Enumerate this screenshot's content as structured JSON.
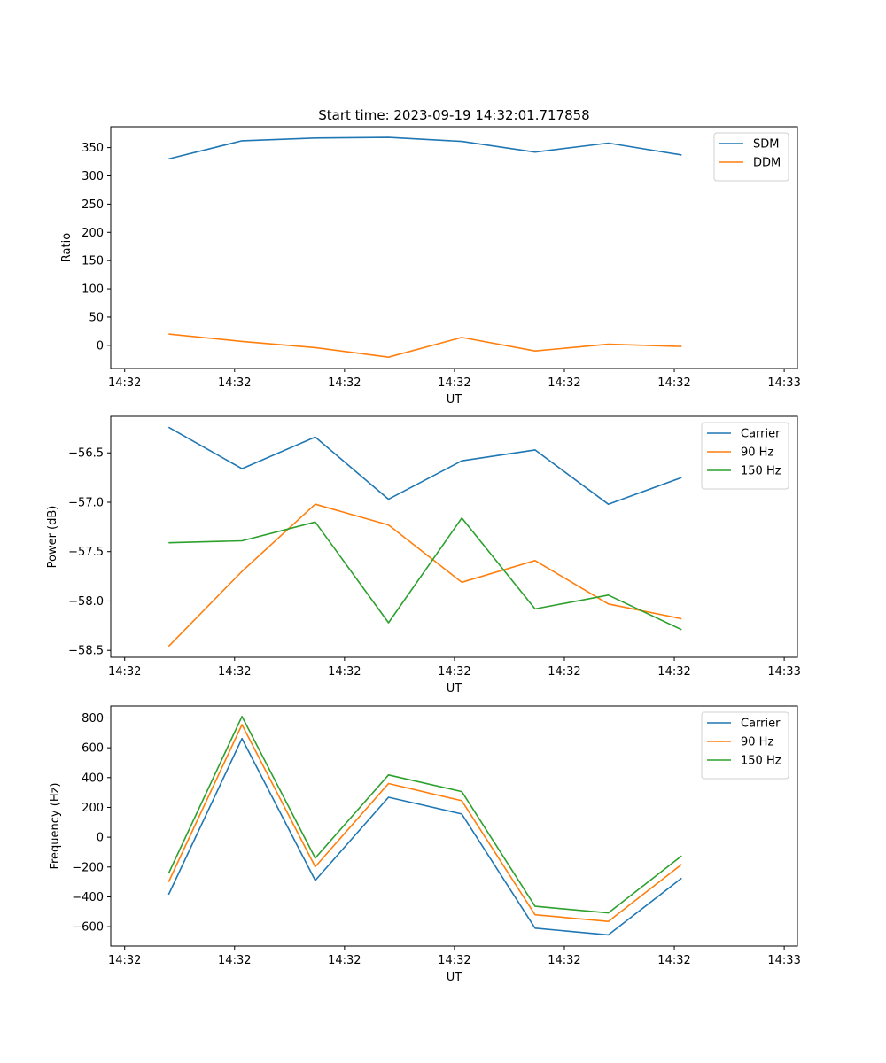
{
  "chart_data": [
    {
      "type": "line",
      "title": "Start time: 2023-09-19 14:32:01.717858",
      "xlabel": "UT",
      "ylabel": "Ratio",
      "x": [
        1,
        2,
        3,
        4,
        5,
        6,
        7,
        8
      ],
      "xlim": [
        0.21,
        9.58
      ],
      "x_ticks": [
        {
          "v": 0.4,
          "label": "14:32"
        },
        {
          "v": 1.9,
          "label": "14:32"
        },
        {
          "v": 3.4,
          "label": "14:32"
        },
        {
          "v": 4.9,
          "label": "14:32"
        },
        {
          "v": 6.4,
          "label": "14:32"
        },
        {
          "v": 7.9,
          "label": "14:32"
        },
        {
          "v": 9.4,
          "label": "14:33"
        }
      ],
      "ylim": [
        -41,
        387
      ],
      "y_ticks": [
        {
          "v": 0,
          "label": "0"
        },
        {
          "v": 50,
          "label": "50"
        },
        {
          "v": 100,
          "label": "100"
        },
        {
          "v": 150,
          "label": "150"
        },
        {
          "v": 200,
          "label": "200"
        },
        {
          "v": 250,
          "label": "250"
        },
        {
          "v": 300,
          "label": "300"
        },
        {
          "v": 350,
          "label": "350"
        }
      ],
      "legend": "top-right",
      "series": [
        {
          "name": "SDM",
          "color": "#1f77b4",
          "values": [
            330,
            362,
            367,
            368,
            361,
            342,
            358,
            337
          ]
        },
        {
          "name": "DDM",
          "color": "#ff7f0e",
          "values": [
            20,
            7,
            -4,
            -21,
            14,
            -10,
            2,
            -2
          ]
        }
      ]
    },
    {
      "type": "line",
      "title": "",
      "xlabel": "UT",
      "ylabel": "Power (dB)",
      "x": [
        1,
        2,
        3,
        4,
        5,
        6,
        7,
        8
      ],
      "xlim": [
        0.21,
        9.58
      ],
      "x_ticks": [
        {
          "v": 0.4,
          "label": "14:32"
        },
        {
          "v": 1.9,
          "label": "14:32"
        },
        {
          "v": 3.4,
          "label": "14:32"
        },
        {
          "v": 4.9,
          "label": "14:32"
        },
        {
          "v": 6.4,
          "label": "14:32"
        },
        {
          "v": 7.9,
          "label": "14:32"
        },
        {
          "v": 9.4,
          "label": "14:33"
        }
      ],
      "ylim": [
        -58.57,
        -56.13
      ],
      "y_ticks": [
        {
          "v": -58.5,
          "label": "−58.5"
        },
        {
          "v": -58.0,
          "label": "−58.0"
        },
        {
          "v": -57.5,
          "label": "−57.5"
        },
        {
          "v": -57.0,
          "label": "−57.0"
        },
        {
          "v": -56.5,
          "label": "−56.5"
        }
      ],
      "legend": "top-right",
      "series": [
        {
          "name": "Carrier",
          "color": "#1f77b4",
          "values": [
            -56.24,
            -56.66,
            -56.34,
            -56.97,
            -56.58,
            -56.47,
            -57.02,
            -56.75
          ]
        },
        {
          "name": "90 Hz",
          "color": "#ff7f0e",
          "values": [
            -58.46,
            -57.7,
            -57.02,
            -57.23,
            -57.81,
            -57.59,
            -58.03,
            -58.18
          ]
        },
        {
          "name": "150 Hz",
          "color": "#2ca02c",
          "values": [
            -57.41,
            -57.39,
            -57.2,
            -58.22,
            -57.16,
            -58.08,
            -57.94,
            -58.29
          ]
        }
      ]
    },
    {
      "type": "line",
      "title": "",
      "xlabel": "UT",
      "ylabel": "Frequency (Hz)",
      "x": [
        1,
        2,
        3,
        4,
        5,
        6,
        7,
        8
      ],
      "xlim": [
        0.21,
        9.58
      ],
      "x_ticks": [
        {
          "v": 0.4,
          "label": "14:32"
        },
        {
          "v": 1.9,
          "label": "14:32"
        },
        {
          "v": 3.4,
          "label": "14:32"
        },
        {
          "v": 4.9,
          "label": "14:32"
        },
        {
          "v": 6.4,
          "label": "14:32"
        },
        {
          "v": 7.9,
          "label": "14:32"
        },
        {
          "v": 9.4,
          "label": "14:33"
        }
      ],
      "ylim": [
        -730,
        880
      ],
      "y_ticks": [
        {
          "v": -600,
          "label": "−600"
        },
        {
          "v": -400,
          "label": "−400"
        },
        {
          "v": -200,
          "label": "−200"
        },
        {
          "v": 0,
          "label": "0"
        },
        {
          "v": 200,
          "label": "200"
        },
        {
          "v": 400,
          "label": "400"
        },
        {
          "v": 600,
          "label": "600"
        },
        {
          "v": 800,
          "label": "800"
        }
      ],
      "legend": "top-right",
      "series": [
        {
          "name": "Carrier",
          "color": "#1f77b4",
          "values": [
            -385,
            662,
            -290,
            268,
            156,
            -610,
            -655,
            -275
          ]
        },
        {
          "name": "90 Hz",
          "color": "#ff7f0e",
          "values": [
            -300,
            755,
            -198,
            360,
            245,
            -520,
            -565,
            -183
          ]
        },
        {
          "name": "150 Hz",
          "color": "#2ca02c",
          "values": [
            -243,
            810,
            -140,
            418,
            306,
            -463,
            -508,
            -125
          ]
        }
      ]
    }
  ]
}
